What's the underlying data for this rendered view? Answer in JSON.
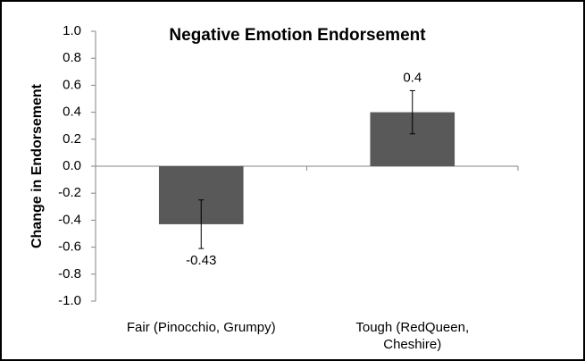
{
  "chart_data": {
    "type": "bar",
    "title": "Negative Emotion Endorsement",
    "y_label": "Change in Endorsement",
    "categories": [
      "Fair (Pinocchio, Grumpy)",
      "Tough (RedQueen, Cheshire)"
    ],
    "values": [
      -0.43,
      0.4
    ],
    "errors": [
      0.18,
      0.16
    ],
    "color": "#595959",
    "ylim": [
      -1.0,
      1.0
    ],
    "yticks": [
      {
        "value": -1.0,
        "label": "-1.0"
      },
      -0.8,
      -0.6,
      -0.4,
      -0.2,
      {
        "value": 0,
        "label": "0.0"
      },
      0.2,
      0.4,
      0.6,
      0.8,
      {
        "value": 1.0,
        "label": "1.0"
      }
    ],
    "grid": false
  }
}
